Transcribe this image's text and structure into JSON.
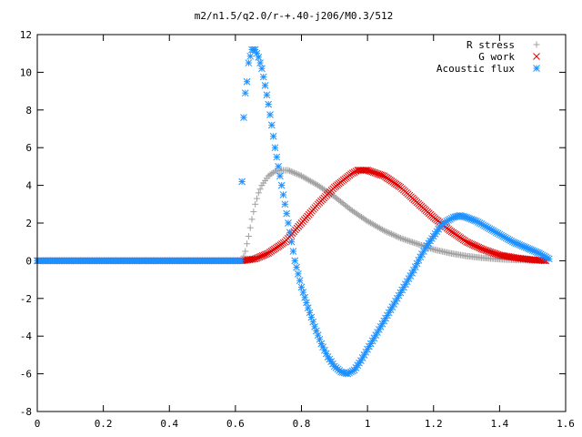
{
  "chart_data": {
    "type": "scatter",
    "title": "m2/n1.5/q2.0/r-+.40-j206/M0.3/512",
    "xlabel": "",
    "ylabel": "",
    "xlim": [
      0,
      1.6
    ],
    "ylim": [
      -8,
      12
    ],
    "x_ticks": [
      "0",
      "0.2",
      "0.4",
      "0.6",
      "0.8",
      "1",
      "1.2",
      "1.4",
      "1.6"
    ],
    "y_ticks": [
      "-8",
      "-6",
      "-4",
      "-2",
      "0",
      "2",
      "4",
      "6",
      "8",
      "10",
      "12"
    ],
    "grid": false,
    "legend_position": "top-right",
    "series": [
      {
        "name": "R stress",
        "marker": "plus",
        "color": "#a0a0a0",
        "points": [
          [
            0.62,
            0.0
          ],
          [
            0.63,
            0.5
          ],
          [
            0.64,
            1.3
          ],
          [
            0.65,
            2.2
          ],
          [
            0.66,
            3.0
          ],
          [
            0.67,
            3.6
          ],
          [
            0.68,
            4.0
          ],
          [
            0.7,
            4.5
          ],
          [
            0.72,
            4.75
          ],
          [
            0.74,
            4.8
          ],
          [
            0.76,
            4.8
          ],
          [
            0.8,
            4.5
          ],
          [
            0.85,
            4.0
          ],
          [
            0.9,
            3.4
          ],
          [
            0.95,
            2.7
          ],
          [
            1.0,
            2.1
          ],
          [
            1.05,
            1.6
          ],
          [
            1.1,
            1.2
          ],
          [
            1.15,
            0.9
          ],
          [
            1.2,
            0.6
          ],
          [
            1.25,
            0.4
          ],
          [
            1.3,
            0.25
          ],
          [
            1.35,
            0.15
          ],
          [
            1.4,
            0.08
          ],
          [
            1.45,
            0.04
          ],
          [
            1.5,
            0.02
          ],
          [
            1.54,
            0.0
          ]
        ]
      },
      {
        "name": "G work",
        "marker": "cross",
        "color": "#e00000",
        "points": [
          [
            0.62,
            0.0
          ],
          [
            0.66,
            0.1
          ],
          [
            0.7,
            0.4
          ],
          [
            0.75,
            1.0
          ],
          [
            0.8,
            2.0
          ],
          [
            0.85,
            3.0
          ],
          [
            0.9,
            3.9
          ],
          [
            0.95,
            4.6
          ],
          [
            0.97,
            4.8
          ],
          [
            1.0,
            4.8
          ],
          [
            1.05,
            4.5
          ],
          [
            1.1,
            3.9
          ],
          [
            1.15,
            3.1
          ],
          [
            1.2,
            2.3
          ],
          [
            1.25,
            1.6
          ],
          [
            1.3,
            1.0
          ],
          [
            1.35,
            0.6
          ],
          [
            1.4,
            0.3
          ],
          [
            1.45,
            0.15
          ],
          [
            1.5,
            0.05
          ],
          [
            1.54,
            0.0
          ]
        ]
      },
      {
        "name": "Acoustic flux",
        "marker": "star",
        "color": "#1e90ff",
        "points": [
          [
            0.62,
            4.2
          ],
          [
            0.625,
            7.6
          ],
          [
            0.63,
            8.9
          ],
          [
            0.635,
            9.5
          ],
          [
            0.64,
            10.5
          ],
          [
            0.65,
            11.2
          ],
          [
            0.66,
            11.2
          ],
          [
            0.67,
            10.8
          ],
          [
            0.68,
            10.2
          ],
          [
            0.69,
            9.3
          ],
          [
            0.7,
            8.3
          ],
          [
            0.71,
            7.2
          ],
          [
            0.72,
            6.0
          ],
          [
            0.73,
            5.0
          ],
          [
            0.74,
            4.0
          ],
          [
            0.75,
            3.0
          ],
          [
            0.76,
            2.0
          ],
          [
            0.77,
            1.0
          ],
          [
            0.78,
            0.0
          ],
          [
            0.8,
            -1.4
          ],
          [
            0.82,
            -2.5
          ],
          [
            0.84,
            -3.5
          ],
          [
            0.86,
            -4.4
          ],
          [
            0.88,
            -5.1
          ],
          [
            0.9,
            -5.6
          ],
          [
            0.92,
            -5.9
          ],
          [
            0.94,
            -6.0
          ],
          [
            0.96,
            -5.8
          ],
          [
            0.98,
            -5.3
          ],
          [
            1.0,
            -4.7
          ],
          [
            1.02,
            -4.1
          ],
          [
            1.04,
            -3.5
          ],
          [
            1.06,
            -2.9
          ],
          [
            1.08,
            -2.3
          ],
          [
            1.1,
            -1.7
          ],
          [
            1.12,
            -1.1
          ],
          [
            1.14,
            -0.5
          ],
          [
            1.16,
            0.2
          ],
          [
            1.18,
            0.8
          ],
          [
            1.2,
            1.3
          ],
          [
            1.22,
            1.8
          ],
          [
            1.24,
            2.1
          ],
          [
            1.26,
            2.3
          ],
          [
            1.28,
            2.4
          ],
          [
            1.3,
            2.3
          ],
          [
            1.33,
            2.1
          ],
          [
            1.36,
            1.8
          ],
          [
            1.4,
            1.4
          ],
          [
            1.44,
            1.0
          ],
          [
            1.48,
            0.7
          ],
          [
            1.52,
            0.4
          ],
          [
            1.55,
            0.1
          ]
        ]
      }
    ]
  }
}
